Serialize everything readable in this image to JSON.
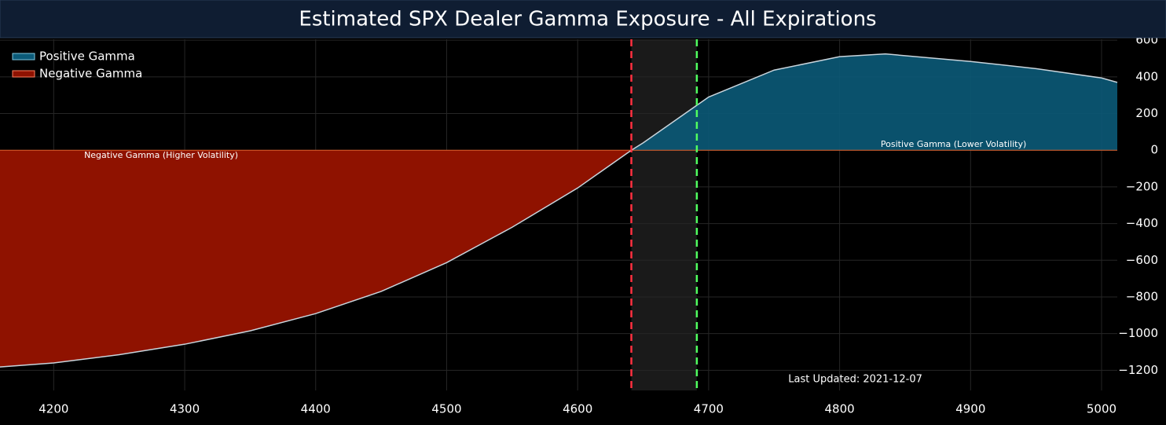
{
  "chart_data": {
    "type": "area",
    "title": "Estimated SPX Dealer Gamma Exposure - All Expirations",
    "x": [
      4159,
      4200,
      4250,
      4300,
      4350,
      4400,
      4450,
      4500,
      4550,
      4600,
      4641,
      4650,
      4700,
      4750,
      4800,
      4835,
      4900,
      4950,
      5000,
      5012
    ],
    "values": [
      -1182,
      -1160,
      -1115,
      -1058,
      -985,
      -891,
      -770,
      -613,
      -420,
      -206,
      0,
      40,
      290,
      437,
      510,
      525,
      484,
      445,
      394,
      370
    ],
    "legend": [
      {
        "name": "Positive Gamma",
        "color": "#0b5a78"
      },
      {
        "name": "Negative Gamma",
        "color": "#8f1200"
      }
    ],
    "line_color": "#c8d4dc",
    "xlim": [
      4159,
      5012
    ],
    "ylim": [
      -1310,
      605
    ],
    "xticks": [
      4200,
      4300,
      4400,
      4500,
      4600,
      4700,
      4800,
      4900,
      5000
    ],
    "yticks": [
      {
        "value": -1200,
        "label": "−1200"
      },
      {
        "value": -1000,
        "label": "−1000"
      },
      {
        "value": -800,
        "label": "−800"
      },
      {
        "value": -600,
        "label": "−600"
      },
      {
        "value": -400,
        "label": "−400"
      },
      {
        "value": -200,
        "label": "−200"
      },
      0,
      200,
      400,
      600
    ],
    "grid": true,
    "legend_position": "top-left",
    "vlines": [
      {
        "x": 4641,
        "color": "#ff3040"
      },
      {
        "x": 4691,
        "color": "#50ff60"
      }
    ],
    "annotations": [
      {
        "text": "Negative Gamma (Higher Volatility)",
        "x": 4282,
        "y": -30
      },
      {
        "text": "Positive Gamma (Lower Volatility)",
        "x": 4887,
        "y": 30
      },
      {
        "text": "Last Updated: 2021-12-07",
        "x": 4812,
        "y": -1250
      }
    ]
  }
}
